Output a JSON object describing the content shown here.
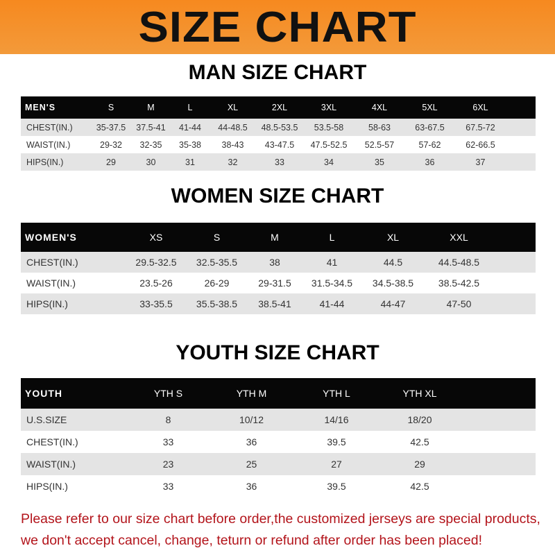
{
  "title": "SIZE CHART",
  "men": {
    "title": "MAN SIZE CHART",
    "header": [
      "MEN'S",
      "S",
      "M",
      "L",
      "XL",
      "2XL",
      "3XL",
      "4XL",
      "5XL",
      "6XL"
    ],
    "rows": [
      [
        "CHEST(IN.)",
        "35-37.5",
        "37.5-41",
        "41-44",
        "44-48.5",
        "48.5-53.5",
        "53.5-58",
        "58-63",
        "63-67.5",
        "67.5-72"
      ],
      [
        "WAIST(IN.)",
        "29-32",
        "32-35",
        "35-38",
        "38-43",
        "43-47.5",
        "47.5-52.5",
        "52.5-57",
        "57-62",
        "62-66.5"
      ],
      [
        "HIPS(IN.)",
        "29",
        "30",
        "31",
        "32",
        "33",
        "34",
        "35",
        "36",
        "37"
      ]
    ]
  },
  "women": {
    "title": "WOMEN SIZE CHART",
    "header": [
      "WOMEN'S",
      "XS",
      "S",
      "M",
      "L",
      "XL",
      "XXL"
    ],
    "rows": [
      [
        "CHEST(IN.)",
        "29.5-32.5",
        "32.5-35.5",
        "38",
        "41",
        "44.5",
        "44.5-48.5"
      ],
      [
        "WAIST(IN.)",
        "23.5-26",
        "26-29",
        "29-31.5",
        "31.5-34.5",
        "34.5-38.5",
        "38.5-42.5"
      ],
      [
        "HIPS(IN.)",
        "33-35.5",
        "35.5-38.5",
        "38.5-41",
        "41-44",
        "44-47",
        "47-50"
      ]
    ]
  },
  "youth": {
    "title": "YOUTH SIZE CHART",
    "header": [
      "YOUTH",
      "YTH S",
      "YTH M",
      "YTH L",
      "YTH XL"
    ],
    "rows": [
      [
        "U.S.SIZE",
        "8",
        "10/12",
        "14/16",
        "18/20"
      ],
      [
        "CHEST(IN.)",
        "33",
        "36",
        "39.5",
        "42.5"
      ],
      [
        "WAIST(IN.)",
        "23",
        "25",
        "27",
        "29"
      ],
      [
        "HIPS(IN.)",
        "33",
        "36",
        "39.5",
        "42.5"
      ]
    ]
  },
  "note": [
    "Please refer to our size chart before order,the customized jerseys are special products,",
    "we don't accept cancel, change, teturn or refund after order has been placed!"
  ],
  "colors": {
    "banner": "#f6891f",
    "header_row": "#070707",
    "note": "#b3141b"
  }
}
